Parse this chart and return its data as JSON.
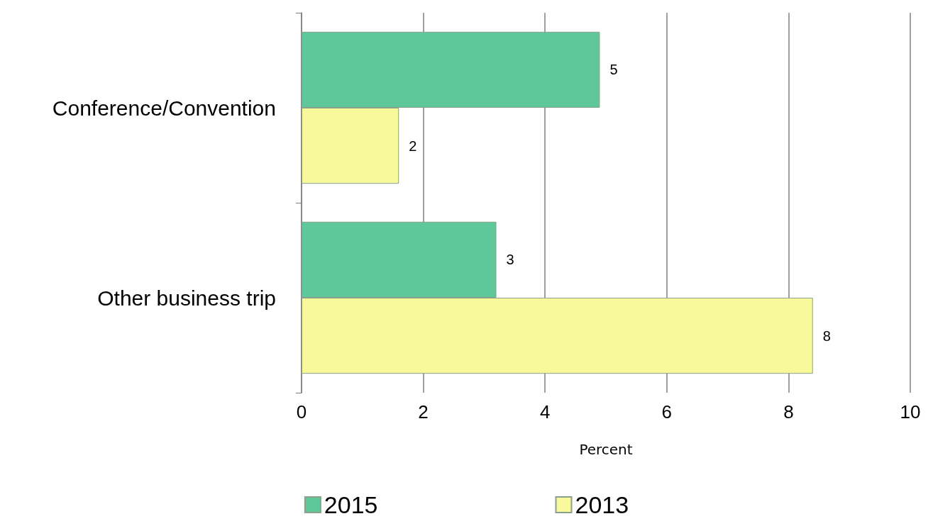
{
  "chart_data": {
    "type": "bar",
    "orientation": "horizontal",
    "xlabel": "Percent",
    "categories": [
      "Conference/Convention",
      "Other business trip"
    ],
    "series": [
      {
        "name": "2015",
        "color": "#5fc89a",
        "values": [
          4.9,
          3.2
        ],
        "value_labels": [
          "5",
          "3"
        ]
      },
      {
        "name": "2013",
        "color": "#f8f99a",
        "values": [
          1.6,
          8.4
        ],
        "value_labels": [
          "2",
          "8"
        ]
      }
    ],
    "xlim": [
      0,
      10
    ],
    "xticks": [
      0,
      2,
      4,
      6,
      8,
      10
    ],
    "grid": "x",
    "legend": "bottom"
  }
}
